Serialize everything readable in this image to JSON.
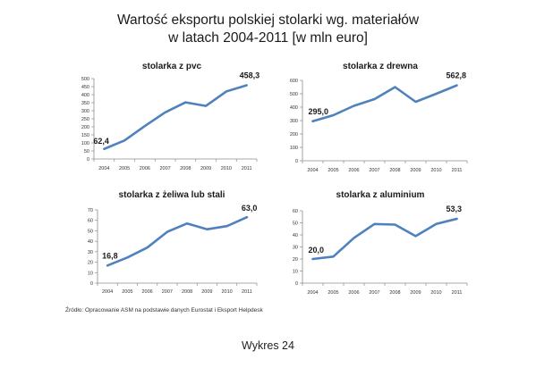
{
  "title_line1": "Wartość eksportu polskiej stolarki wg. materiałów",
  "title_line2": "w latach 2004-2011 [w mln euro]",
  "source": "Źródło: Opracowanie ASM na podstawie danych Eurostat i Eksport Helpdesk",
  "caption": "Wykres 24",
  "colors": {
    "line": "#4f81bd",
    "axis": "#8c8c8c",
    "grid": "#d9d9d9"
  },
  "chart_data": [
    {
      "type": "line",
      "title": "stolarka z pvc",
      "x": [
        "2004",
        "2005",
        "2006",
        "2007",
        "2008",
        "2009",
        "2010",
        "2011"
      ],
      "series": [
        {
          "values": [
            62.4,
            115,
            205,
            290,
            352,
            330,
            420,
            458.3
          ]
        }
      ],
      "ylim": [
        0,
        500
      ],
      "yticks": [
        "0",
        "50",
        "100",
        "150",
        "200",
        "250",
        "300",
        "350",
        "400",
        "450",
        "500"
      ],
      "labels": [
        {
          "index": 0,
          "text": "62,4"
        },
        {
          "index": 7,
          "text": "458,3"
        }
      ],
      "grid": false
    },
    {
      "type": "line",
      "title": "stolarka z drewna",
      "x": [
        "2004",
        "2005",
        "2006",
        "2007",
        "2008",
        "2009",
        "2010",
        "2011"
      ],
      "series": [
        {
          "values": [
            295.0,
            340,
            410,
            460,
            550,
            440,
            500,
            562.8
          ]
        }
      ],
      "ylim": [
        0,
        600
      ],
      "yticks": [
        "0",
        "100",
        "200",
        "300",
        "400",
        "500",
        "600"
      ],
      "labels": [
        {
          "index": 0,
          "text": "295,0"
        },
        {
          "index": 7,
          "text": "562,8"
        }
      ],
      "grid": false
    },
    {
      "type": "line",
      "title": "stolarka z żeliwa lub stali",
      "x": [
        "2004",
        "2005",
        "2006",
        "2007",
        "2008",
        "2009",
        "2010",
        "2011"
      ],
      "series": [
        {
          "values": [
            16.8,
            24.5,
            34,
            49,
            57,
            51.5,
            54.5,
            63.0
          ]
        }
      ],
      "ylim": [
        0,
        70
      ],
      "yticks": [
        "0",
        "10",
        "20",
        "30",
        "40",
        "50",
        "60",
        "70"
      ],
      "labels": [
        {
          "index": 0,
          "text": "16,8"
        },
        {
          "index": 7,
          "text": "63,0"
        }
      ],
      "grid": false
    },
    {
      "type": "line",
      "title": "stolarka z aluminium",
      "x": [
        "2004",
        "2005",
        "2006",
        "2007",
        "2008",
        "2009",
        "2010",
        "2011"
      ],
      "series": [
        {
          "values": [
            20.0,
            22,
            37.5,
            49,
            48.5,
            39,
            49,
            53.3
          ]
        }
      ],
      "ylim": [
        0,
        60
      ],
      "yticks": [
        "0",
        "10",
        "20",
        "30",
        "40",
        "50",
        "60"
      ],
      "labels": [
        {
          "index": 0,
          "text": "20,0"
        },
        {
          "index": 7,
          "text": "53,3"
        }
      ],
      "grid": false
    }
  ]
}
